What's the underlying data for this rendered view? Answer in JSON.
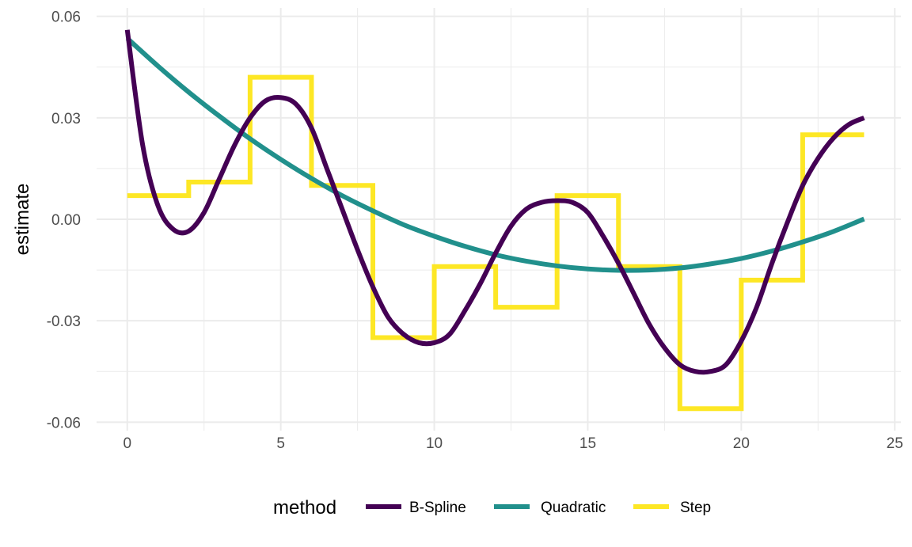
{
  "chart_data": {
    "type": "line",
    "title": "",
    "xlabel": "",
    "ylabel": "estimate",
    "xlim": [
      -1.0,
      25.2
    ],
    "ylim": [
      -0.0625,
      0.0625
    ],
    "x_ticks": [
      0,
      5,
      10,
      15,
      20,
      25
    ],
    "x_tick_labels": [
      "0",
      "5",
      "10",
      "15",
      "20",
      "25"
    ],
    "y_ticks": [
      -0.06,
      -0.03,
      0.0,
      0.03,
      0.06
    ],
    "y_tick_labels": [
      "-0.06",
      "-0.03",
      "0.00",
      "0.03",
      "0.06"
    ],
    "grid": true,
    "legend": {
      "title": "method",
      "position": "bottom"
    },
    "series": [
      {
        "name": "B-Spline",
        "color": "#440154",
        "kind": "smooth",
        "x": [
          0,
          0.5,
          1,
          1.5,
          2,
          2.5,
          3,
          3.5,
          4,
          4.5,
          5,
          5.5,
          6,
          6.5,
          7,
          7.5,
          8,
          8.5,
          9,
          9.5,
          10,
          10.5,
          11,
          11.5,
          12,
          12.5,
          13,
          13.5,
          14,
          14.5,
          15,
          15.5,
          16,
          16.5,
          17,
          17.5,
          18,
          18.5,
          19,
          19.5,
          20,
          20.5,
          21,
          21.5,
          22,
          22.5,
          23,
          23.5,
          24
        ],
        "y": [
          0.056,
          0.022,
          0.004,
          -0.003,
          -0.0035,
          0.002,
          0.012,
          0.022,
          0.03,
          0.035,
          0.036,
          0.034,
          0.027,
          0.015,
          0.003,
          -0.009,
          -0.02,
          -0.029,
          -0.034,
          -0.0365,
          -0.0365,
          -0.034,
          -0.027,
          -0.019,
          -0.01,
          -0.002,
          0.003,
          0.005,
          0.0055,
          0.005,
          0.002,
          -0.005,
          -0.013,
          -0.022,
          -0.031,
          -0.038,
          -0.043,
          -0.045,
          -0.045,
          -0.043,
          -0.036,
          -0.026,
          -0.013,
          -0.001,
          0.01,
          0.018,
          0.024,
          0.028,
          0.03
        ]
      },
      {
        "name": "Quadratic",
        "color": "#21908C",
        "kind": "smooth",
        "x": [
          0,
          1,
          2,
          3,
          4,
          5,
          6,
          7,
          8,
          9,
          10,
          11,
          12,
          13,
          14,
          15,
          16,
          17,
          18,
          19,
          20,
          21,
          22,
          23,
          24
        ],
        "y": [
          0.0535,
          0.0453,
          0.0376,
          0.0305,
          0.0238,
          0.0177,
          0.0121,
          0.007,
          0.0025,
          -0.0016,
          -0.005,
          -0.008,
          -0.0105,
          -0.0124,
          -0.0138,
          -0.0147,
          -0.0151,
          -0.015,
          -0.0144,
          -0.0132,
          -0.0116,
          -0.0094,
          -0.0067,
          -0.0036,
          0.0001
        ]
      },
      {
        "name": "Step",
        "color": "#FDE725",
        "kind": "step",
        "breaks": [
          0,
          2,
          4,
          6,
          8,
          10,
          12,
          14,
          16,
          18,
          20,
          22,
          24
        ],
        "values": [
          0.007,
          0.011,
          0.042,
          0.01,
          -0.035,
          -0.014,
          -0.026,
          0.007,
          -0.014,
          -0.056,
          -0.018,
          0.025
        ]
      }
    ]
  }
}
